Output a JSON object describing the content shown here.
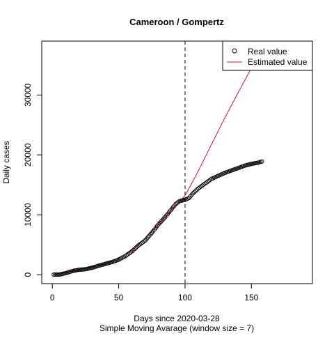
{
  "chart_data": {
    "type": "line",
    "title": "Cameroon / Gompertz",
    "xlabel": "Days since 2020-03-28",
    "xlabel_sub": "Simple Moving Avarage (window size = 7)",
    "ylabel": "Daily cases",
    "xlim": [
      -8,
      196
    ],
    "ylim": [
      -1500,
      39000
    ],
    "x_ticks": [
      0,
      50,
      100,
      150
    ],
    "x_tick_labels": [
      "0",
      "50",
      "100",
      "150"
    ],
    "y_ticks": [
      0,
      10000,
      20000,
      30000
    ],
    "y_tick_labels": [
      "0",
      "10000",
      "20000",
      "30000"
    ],
    "vline": {
      "x": 100,
      "style": "dashed"
    },
    "legend": {
      "placement": "top-right",
      "entries": [
        {
          "label": "Real value",
          "marker": "open-circle",
          "color": "#000000"
        },
        {
          "label": "Estimated value",
          "marker": "line",
          "color": "#cd0b54"
        }
      ]
    },
    "series": [
      {
        "name": "Real value",
        "style": "points",
        "color": "#000000",
        "x_range": [
          1,
          158
        ],
        "anchors": [
          [
            1,
            0
          ],
          [
            5,
            0
          ],
          [
            10,
            250
          ],
          [
            15,
            600
          ],
          [
            20,
            820
          ],
          [
            25,
            900
          ],
          [
            30,
            1150
          ],
          [
            35,
            1500
          ],
          [
            40,
            1800
          ],
          [
            45,
            2100
          ],
          [
            50,
            2500
          ],
          [
            55,
            3100
          ],
          [
            60,
            3900
          ],
          [
            65,
            4900
          ],
          [
            70,
            5700
          ],
          [
            75,
            7000
          ],
          [
            80,
            8400
          ],
          [
            85,
            9600
          ],
          [
            90,
            11000
          ],
          [
            93,
            11800
          ],
          [
            96,
            12300
          ],
          [
            100,
            12500
          ],
          [
            103,
            12800
          ],
          [
            106,
            13600
          ],
          [
            110,
            14400
          ],
          [
            115,
            15200
          ],
          [
            120,
            16000
          ],
          [
            125,
            16500
          ],
          [
            130,
            17000
          ],
          [
            135,
            17400
          ],
          [
            140,
            17800
          ],
          [
            145,
            18200
          ],
          [
            150,
            18500
          ],
          [
            155,
            18700
          ],
          [
            158,
            18900
          ]
        ]
      },
      {
        "name": "Estimated value",
        "style": "line",
        "color": "#cd0b54",
        "x_range": [
          1,
          158
        ],
        "anchors": [
          [
            1,
            0
          ],
          [
            20,
            820
          ],
          [
            40,
            1800
          ],
          [
            60,
            3900
          ],
          [
            80,
            8400
          ],
          [
            95,
            12100
          ],
          [
            100,
            13200
          ],
          [
            110,
            17300
          ],
          [
            120,
            21800
          ],
          [
            130,
            26200
          ],
          [
            140,
            30400
          ],
          [
            150,
            34500
          ],
          [
            158,
            37700
          ]
        ]
      }
    ]
  }
}
